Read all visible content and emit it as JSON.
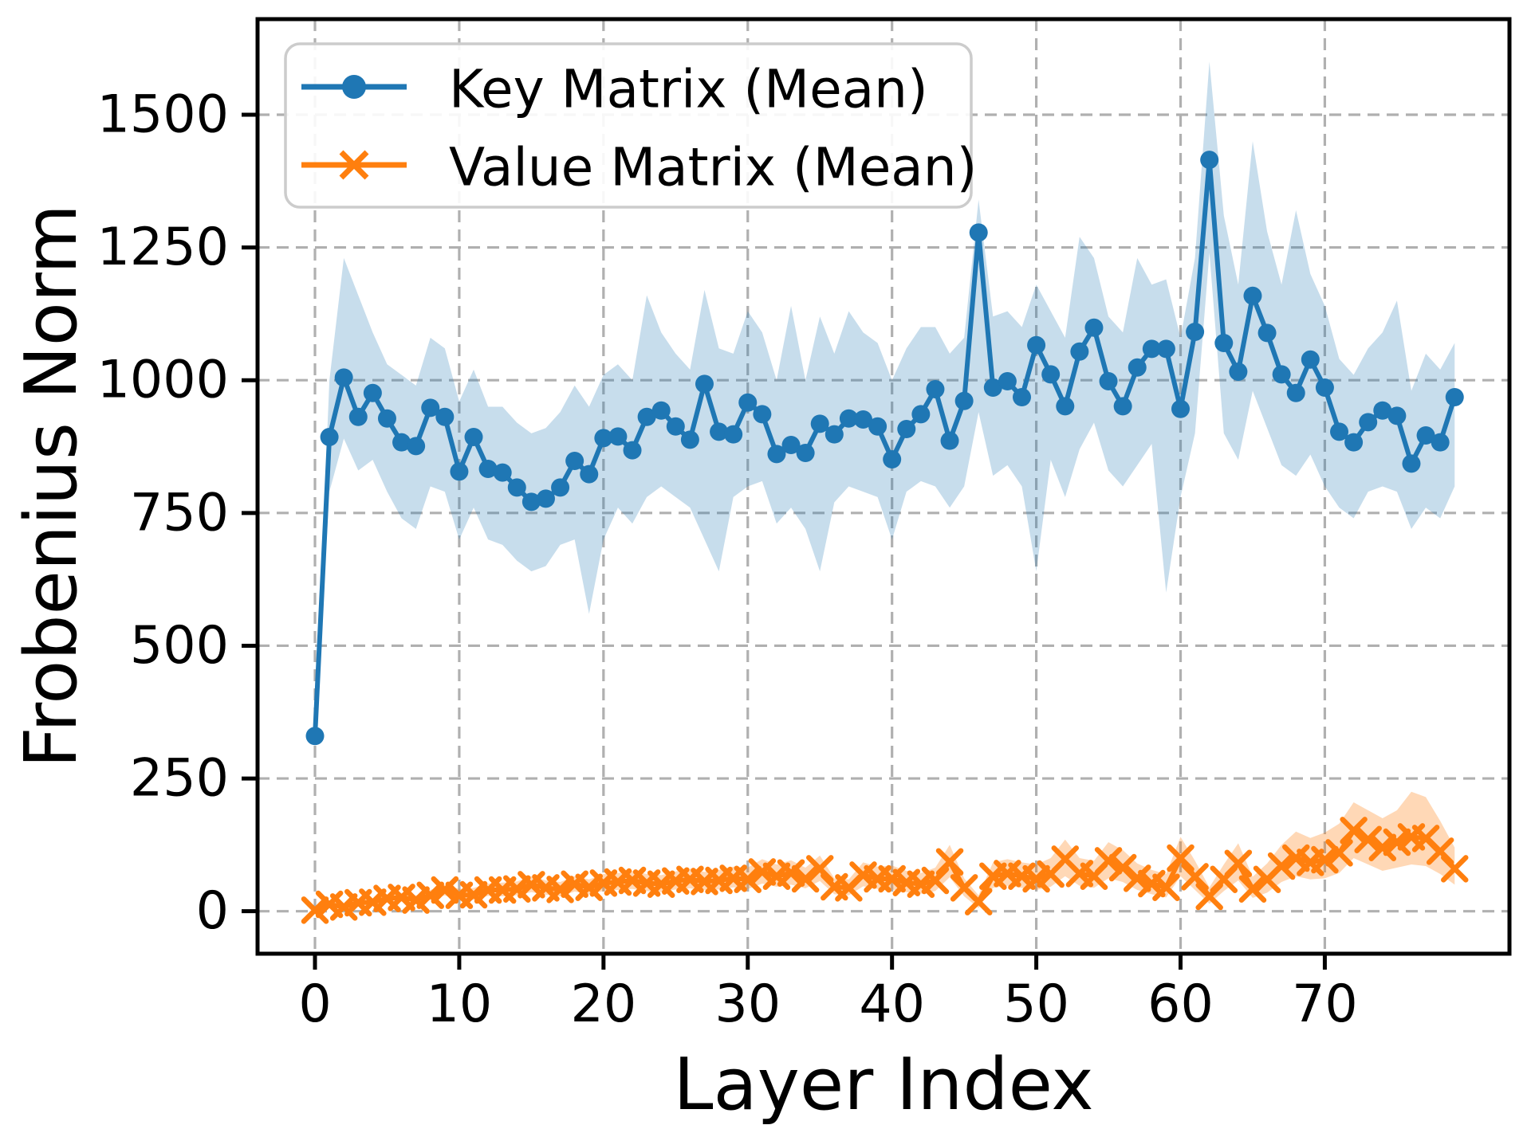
{
  "chart_data": {
    "type": "line",
    "xlabel": "Layer Index",
    "ylabel": "Frobenius Norm",
    "x_ticks": [
      0,
      10,
      20,
      30,
      40,
      50,
      60,
      70
    ],
    "y_ticks": [
      0,
      250,
      500,
      750,
      1000,
      1250,
      1500
    ],
    "xlim": [
      -3.98,
      82.8
    ],
    "ylim": [
      -80,
      1680
    ],
    "grid": true,
    "legend_position": "upper left",
    "x": [
      0,
      1,
      2,
      3,
      4,
      5,
      6,
      7,
      8,
      9,
      10,
      11,
      12,
      13,
      14,
      15,
      16,
      17,
      18,
      19,
      20,
      21,
      22,
      23,
      24,
      25,
      26,
      27,
      28,
      29,
      30,
      31,
      32,
      33,
      34,
      35,
      36,
      37,
      38,
      39,
      40,
      41,
      42,
      43,
      44,
      45,
      46,
      47,
      48,
      49,
      50,
      51,
      52,
      53,
      54,
      55,
      56,
      57,
      58,
      59,
      60,
      61,
      62,
      63,
      64,
      65,
      66,
      67,
      68,
      69,
      70,
      71,
      72,
      73,
      74,
      75,
      76,
      77,
      78,
      79
    ],
    "series": [
      {
        "id": "key",
        "name": "Key Matrix (Mean)",
        "color": "#1f77b4",
        "marker": "circle",
        "band_opacity": 0.25,
        "values": [
          330,
          893,
          1005,
          931,
          976,
          928,
          883,
          876,
          948,
          931,
          828,
          893,
          833,
          826,
          798,
          771,
          777,
          798,
          848,
          823,
          891,
          894,
          868,
          931,
          943,
          913,
          888,
          993,
          903,
          898,
          958,
          936,
          861,
          878,
          863,
          918,
          898,
          928,
          926,
          913,
          851,
          908,
          936,
          983,
          886,
          961,
          1278,
          986,
          998,
          968,
          1066,
          1011,
          951,
          1054,
          1099,
          998,
          951,
          1024,
          1059,
          1059,
          946,
          1091,
          1415,
          1070,
          1016,
          1159,
          1089,
          1011,
          976,
          1039,
          986,
          903,
          883,
          921,
          943,
          933,
          843,
          896,
          883,
          968
        ],
        "band_upper": [
          345,
          1000,
          1230,
          1160,
          1090,
          1030,
          1010,
          990,
          1080,
          1060,
          960,
          1020,
          950,
          950,
          920,
          900,
          910,
          940,
          990,
          950,
          1010,
          1030,
          1000,
          1160,
          1090,
          1050,
          1020,
          1170,
          1060,
          1050,
          1130,
          1090,
          1000,
          1140,
          1000,
          1120,
          1050,
          1130,
          1090,
          1070,
          1000,
          1060,
          1100,
          1100,
          1050,
          1080,
          1340,
          1120,
          1130,
          1100,
          1180,
          1130,
          1080,
          1270,
          1230,
          1120,
          1090,
          1230,
          1180,
          1190,
          1080,
          1230,
          1600,
          1310,
          1180,
          1450,
          1280,
          1180,
          1320,
          1200,
          1140,
          1040,
          1010,
          1060,
          1090,
          1150,
          980,
          1050,
          1020,
          1070
        ],
        "band_lower": [
          315,
          790,
          890,
          830,
          850,
          790,
          740,
          720,
          800,
          790,
          700,
          760,
          700,
          690,
          660,
          640,
          650,
          690,
          700,
          560,
          700,
          760,
          730,
          780,
          800,
          780,
          760,
          700,
          640,
          780,
          800,
          810,
          730,
          760,
          720,
          640,
          770,
          800,
          790,
          780,
          700,
          790,
          810,
          800,
          760,
          800,
          940,
          820,
          840,
          800,
          640,
          850,
          780,
          870,
          920,
          830,
          800,
          840,
          880,
          600,
          780,
          900,
          1240,
          900,
          850,
          980,
          910,
          840,
          820,
          860,
          800,
          760,
          740,
          790,
          800,
          790,
          720,
          760,
          740,
          800
        ]
      },
      {
        "id": "value",
        "name": "Value Matrix (Mean)",
        "color": "#ff7f0e",
        "marker": "x",
        "band_opacity": 0.3,
        "values": [
          2,
          13,
          8,
          16,
          17,
          24,
          26,
          21,
          30,
          40,
          30,
          31,
          40,
          40,
          42,
          50,
          44,
          41,
          51,
          45,
          53,
          55,
          58,
          53,
          51,
          57,
          60,
          56,
          58,
          62,
          60,
          74,
          66,
          72,
          61,
          80,
          46,
          44,
          68,
          61,
          61,
          54,
          51,
          58,
          93,
          44,
          18,
          66,
          71,
          66,
          61,
          70,
          98,
          71,
          66,
          95,
          82,
          62,
          52,
          45,
          100,
          65,
          28,
          60,
          90,
          42,
          60,
          85,
          100,
          92,
          97,
          110,
          152,
          135,
          120,
          130,
          140,
          137,
          113,
          80
        ],
        "band_upper": [
          6,
          18,
          14,
          22,
          24,
          32,
          34,
          30,
          40,
          50,
          42,
          44,
          52,
          54,
          56,
          66,
          58,
          55,
          66,
          60,
          70,
          72,
          76,
          70,
          68,
          75,
          80,
          74,
          78,
          84,
          82,
          98,
          88,
          96,
          82,
          105,
          62,
          60,
          92,
          84,
          86,
          76,
          72,
          82,
          125,
          62,
          30,
          92,
          98,
          92,
          88,
          100,
          135,
          100,
          95,
          130,
          115,
          90,
          78,
          70,
          140,
          95,
          45,
          88,
          128,
          65,
          90,
          125,
          150,
          138,
          148,
          165,
          205,
          190,
          175,
          190,
          225,
          215,
          170,
          120
        ],
        "band_lower": [
          0,
          6,
          3,
          10,
          11,
          16,
          18,
          14,
          21,
          30,
          20,
          21,
          29,
          28,
          30,
          36,
          31,
          28,
          37,
          32,
          38,
          40,
          42,
          38,
          36,
          41,
          43,
          40,
          41,
          45,
          42,
          52,
          46,
          50,
          43,
          57,
          32,
          30,
          47,
          42,
          41,
          36,
          33,
          38,
          64,
          28,
          6,
          44,
          48,
          44,
          40,
          46,
          66,
          48,
          44,
          62,
          55,
          40,
          32,
          26,
          66,
          40,
          14,
          38,
          58,
          25,
          35,
          55,
          66,
          60,
          62,
          72,
          100,
          88,
          76,
          82,
          88,
          85,
          70,
          50
        ]
      }
    ]
  },
  "legend": {
    "key_label": "Key Matrix (Mean)",
    "value_label": "Value Matrix (Mean)"
  }
}
